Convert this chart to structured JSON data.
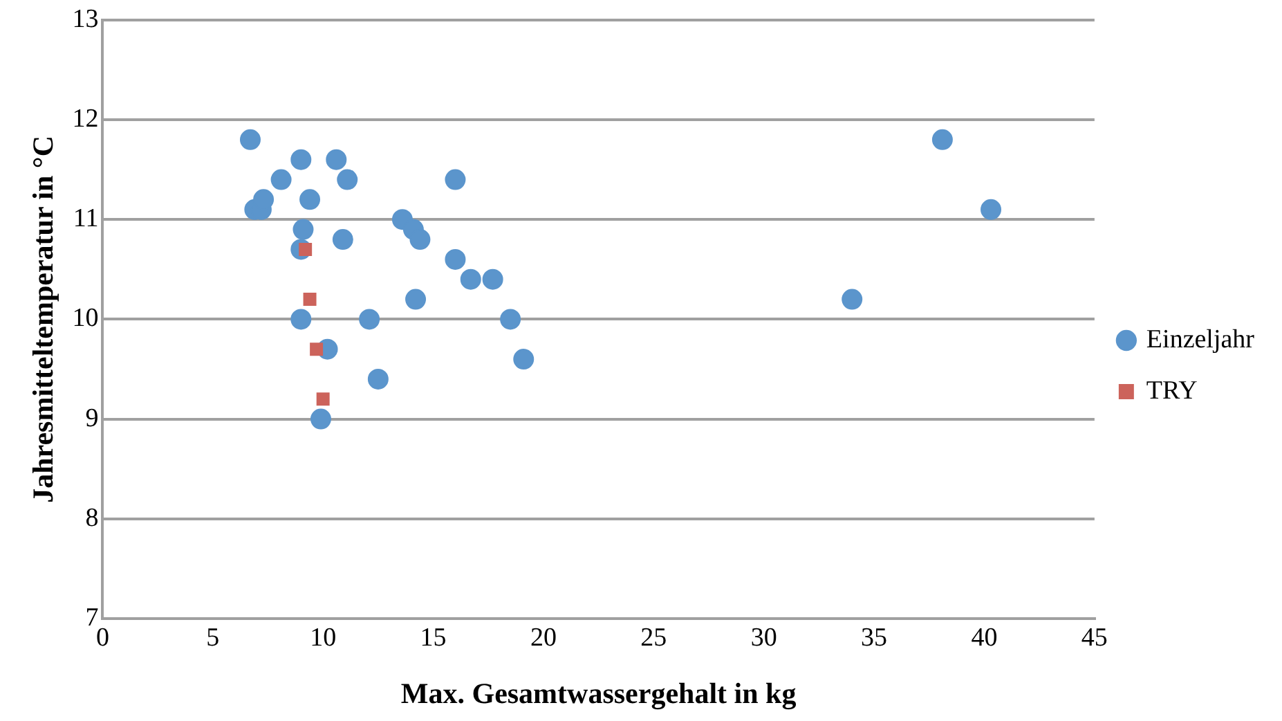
{
  "chart_data": {
    "type": "scatter",
    "xlabel": "Max. Gesamtwassergehalt in kg",
    "ylabel": "Jahresmitteltemperatur in °C",
    "xlim": [
      0,
      45
    ],
    "xticks": [
      0,
      5,
      10,
      15,
      20,
      25,
      30,
      35,
      40,
      45
    ],
    "ylim": [
      7,
      13
    ],
    "yticks": [
      7,
      8,
      9,
      10,
      11,
      12,
      13
    ],
    "grid": "y",
    "legend": "right",
    "series": [
      {
        "name": "Einzeljahr",
        "color": "#5b95cc",
        "marker": "circle",
        "x": [
          6.7,
          6.9,
          7.2,
          7.3,
          8.1,
          9.0,
          9.4,
          9.1,
          9.0,
          9.0,
          10.6,
          11.1,
          10.9,
          10.2,
          9.9,
          12.1,
          12.5,
          13.6,
          14.1,
          14.4,
          14.2,
          16.0,
          16.0,
          16.7,
          17.7,
          18.5,
          19.1,
          34.0,
          38.1,
          40.3
        ],
        "values": [
          11.8,
          11.1,
          11.1,
          11.2,
          11.4,
          11.6,
          11.2,
          10.9,
          10.7,
          10.0,
          11.6,
          11.4,
          10.8,
          9.7,
          9.0,
          10.0,
          9.4,
          11.0,
          10.9,
          10.8,
          10.2,
          11.4,
          10.6,
          10.4,
          10.4,
          10.0,
          9.6,
          10.2,
          11.8,
          11.1
        ]
      },
      {
        "name": "TRY",
        "color": "#cc635b",
        "marker": "square",
        "x": [
          9.2,
          9.4,
          9.7,
          10.0
        ],
        "values": [
          10.7,
          10.2,
          9.7,
          9.2
        ]
      }
    ]
  }
}
